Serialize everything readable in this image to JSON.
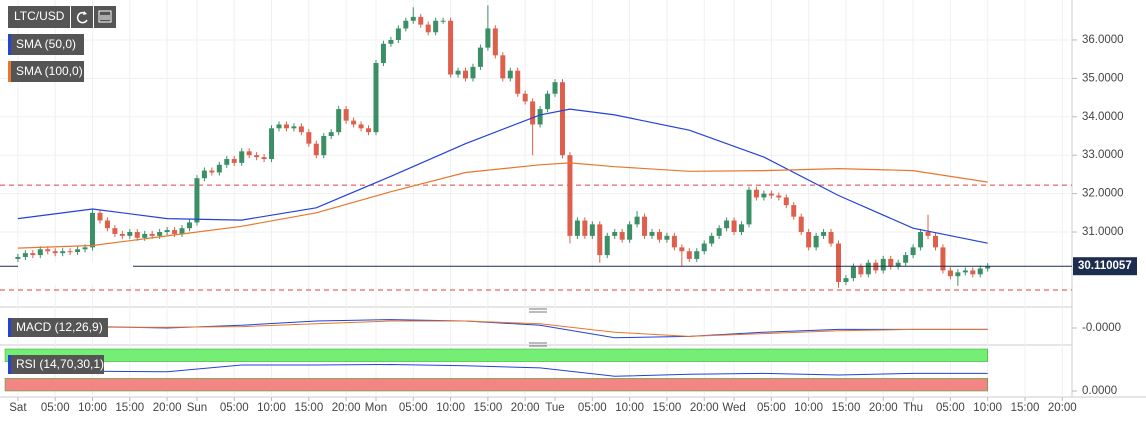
{
  "chart_data": {
    "type": "candlestick",
    "symbol": "LTC/USD",
    "x": [
      0,
      1,
      2,
      3,
      4,
      5,
      6,
      7,
      8,
      9,
      10,
      11,
      12,
      13,
      14,
      15,
      16,
      17,
      18,
      19,
      20,
      21,
      22,
      23,
      24,
      25,
      26,
      27,
      28,
      29,
      30,
      31,
      32,
      33,
      34,
      35,
      36,
      37,
      38,
      39,
      40,
      41,
      42,
      43,
      44,
      45,
      46,
      47,
      48,
      49,
      50,
      51,
      52,
      53,
      54,
      55,
      56,
      57,
      58,
      59,
      60,
      61,
      62,
      63,
      64,
      65,
      66,
      67,
      68,
      69,
      70,
      71,
      72,
      73,
      74,
      75,
      76,
      77,
      78,
      79,
      80,
      81,
      82,
      83,
      84,
      85,
      86,
      87,
      88,
      89,
      90,
      91,
      92,
      93,
      94,
      95,
      96,
      97,
      98,
      99,
      100,
      101,
      102,
      103,
      104,
      105,
      106,
      107,
      108,
      109,
      110,
      111,
      112,
      113,
      114,
      115,
      116,
      117,
      118,
      119,
      120,
      121,
      122,
      123,
      124,
      125,
      126,
      127,
      128,
      129,
      130
    ],
    "open": [
      30.3,
      30.35,
      30.45,
      30.4,
      30.55,
      30.5,
      30.45,
      30.5,
      30.48,
      30.55,
      30.6,
      31.5,
      31.3,
      31.1,
      30.95,
      30.9,
      31.0,
      30.85,
      30.95,
      30.9,
      31.0,
      31.05,
      30.95,
      31.1,
      31.25,
      32.4,
      32.6,
      32.55,
      32.75,
      32.9,
      32.8,
      33.1,
      33.0,
      32.95,
      32.9,
      33.7,
      33.8,
      33.7,
      33.75,
      33.6,
      33.3,
      33.0,
      33.5,
      33.6,
      34.2,
      33.9,
      33.8,
      33.7,
      33.6,
      35.4,
      35.9,
      36.0,
      36.3,
      36.5,
      36.6,
      36.4,
      36.2,
      36.5,
      36.5,
      35.1,
      35.2,
      35.0,
      35.3,
      35.8,
      36.3,
      35.6,
      35.0,
      35.2,
      34.6,
      34.4,
      33.8,
      34.2,
      34.6,
      34.9,
      33.0,
      30.9,
      31.3,
      30.9,
      31.2,
      30.4,
      30.9,
      31.0,
      30.8,
      31.2,
      31.4,
      30.9,
      31.0,
      30.8,
      30.9,
      30.6,
      30.5,
      30.3,
      30.5,
      30.7,
      30.9,
      31.1,
      31.3,
      31.0,
      31.2,
      32.1,
      31.9,
      32.0,
      31.95,
      31.9,
      31.7,
      31.4,
      31.0,
      30.6,
      30.9,
      31.0,
      30.7,
      29.7,
      29.8,
      30.1,
      29.9,
      30.2,
      30.0,
      30.3,
      30.1,
      30.2,
      30.4,
      30.6,
      31.0,
      30.9,
      30.6,
      30.0,
      29.85,
      29.95,
      30.0,
      29.9,
      30.05
    ],
    "high": [
      30.43,
      30.53,
      30.53,
      30.63,
      30.63,
      30.58,
      30.58,
      30.58,
      30.63,
      30.68,
      31.58,
      31.58,
      31.38,
      31.18,
      31.03,
      31.08,
      31.08,
      31.03,
      31.03,
      31.08,
      31.13,
      31.13,
      31.18,
      31.33,
      32.48,
      32.68,
      32.68,
      32.83,
      32.98,
      32.98,
      33.18,
      33.18,
      33.08,
      33.03,
      33.78,
      33.88,
      33.88,
      33.83,
      33.83,
      33.68,
      33.38,
      33.58,
      33.68,
      34.28,
      34.28,
      33.98,
      33.88,
      33.78,
      35.48,
      35.98,
      36.08,
      36.38,
      36.58,
      36.85,
      36.68,
      36.48,
      36.58,
      36.58,
      36.58,
      35.28,
      35.28,
      35.38,
      35.88,
      36.9,
      36.38,
      35.68,
      35.28,
      35.28,
      34.68,
      34.48,
      34.28,
      34.68,
      34.98,
      34.98,
      33.08,
      31.38,
      31.38,
      31.28,
      31.28,
      30.98,
      31.08,
      31.08,
      31.28,
      31.55,
      31.48,
      31.08,
      31.08,
      30.98,
      30.98,
      30.68,
      30.58,
      30.58,
      30.78,
      30.98,
      31.18,
      31.38,
      31.38,
      31.28,
      32.18,
      32.18,
      32.08,
      32.08,
      32.03,
      31.98,
      31.78,
      31.48,
      31.08,
      30.98,
      31.08,
      31.08,
      30.78,
      29.88,
      30.18,
      30.18,
      30.28,
      30.28,
      30.38,
      30.38,
      30.28,
      30.48,
      30.68,
      31.08,
      31.45,
      30.98,
      30.68,
      30.08,
      30.03,
      30.08,
      30.08,
      30.13,
      30.19
    ],
    "low": [
      30.22,
      30.27,
      30.32,
      30.32,
      30.42,
      30.37,
      30.37,
      30.4,
      30.4,
      30.47,
      30.52,
      31.22,
      31.02,
      30.87,
      30.82,
      30.82,
      30.77,
      30.77,
      30.82,
      30.82,
      30.92,
      30.87,
      30.87,
      31.02,
      31.17,
      32.32,
      32.47,
      32.47,
      32.67,
      32.72,
      32.72,
      32.92,
      32.87,
      32.82,
      32.82,
      33.62,
      33.62,
      33.62,
      33.52,
      33.22,
      32.92,
      32.92,
      33.42,
      33.52,
      33.82,
      33.72,
      33.62,
      33.52,
      33.52,
      35.32,
      35.82,
      35.92,
      36.22,
      36.42,
      36.32,
      36.12,
      36.12,
      36.42,
      35.02,
      35.02,
      34.92,
      34.92,
      35.22,
      35.72,
      35.52,
      34.92,
      34.92,
      34.52,
      34.32,
      33.0,
      33.72,
      34.12,
      34.52,
      32.92,
      30.7,
      30.82,
      30.82,
      30.82,
      30.2,
      30.32,
      30.82,
      30.72,
      30.72,
      31.12,
      30.82,
      30.82,
      30.72,
      30.72,
      30.52,
      30.1,
      30.22,
      30.22,
      30.42,
      30.62,
      30.82,
      31.02,
      30.92,
      30.92,
      31.12,
      31.82,
      31.82,
      31.87,
      31.82,
      31.62,
      31.32,
      30.92,
      30.52,
      30.52,
      30.82,
      30.62,
      29.55,
      29.62,
      29.72,
      29.82,
      29.82,
      29.92,
      29.92,
      30.02,
      30.02,
      30.12,
      30.32,
      30.52,
      30.82,
      30.52,
      29.92,
      29.77,
      29.6,
      29.87,
      29.82,
      29.82,
      29.97
    ],
    "close": [
      30.35,
      30.45,
      30.4,
      30.55,
      30.5,
      30.45,
      30.5,
      30.48,
      30.55,
      30.6,
      31.5,
      31.3,
      31.1,
      30.95,
      30.9,
      31.0,
      30.85,
      30.95,
      30.9,
      31.0,
      31.05,
      30.95,
      31.1,
      31.25,
      32.4,
      32.6,
      32.55,
      32.75,
      32.9,
      32.8,
      33.1,
      33.0,
      32.95,
      32.9,
      33.7,
      33.8,
      33.7,
      33.75,
      33.6,
      33.3,
      33.0,
      33.5,
      33.6,
      34.2,
      33.9,
      33.8,
      33.7,
      33.6,
      35.4,
      35.9,
      36.0,
      36.3,
      36.5,
      36.6,
      36.4,
      36.2,
      36.5,
      36.5,
      35.1,
      35.2,
      35.0,
      35.3,
      35.8,
      36.3,
      35.6,
      35.0,
      35.2,
      34.6,
      34.4,
      33.8,
      34.2,
      34.6,
      34.9,
      33.0,
      30.9,
      31.3,
      30.9,
      31.2,
      30.4,
      30.9,
      31.0,
      30.8,
      31.2,
      31.4,
      30.9,
      31.0,
      30.8,
      30.9,
      30.6,
      30.5,
      30.3,
      30.5,
      30.7,
      30.9,
      31.1,
      31.3,
      31.0,
      31.2,
      32.1,
      31.9,
      32.0,
      31.95,
      31.9,
      31.7,
      31.4,
      31.0,
      30.6,
      30.9,
      31.0,
      30.7,
      29.7,
      29.8,
      30.1,
      29.9,
      30.2,
      30.0,
      30.3,
      30.1,
      30.2,
      30.4,
      30.6,
      31.0,
      30.9,
      30.6,
      30.0,
      29.85,
      29.95,
      30.0,
      29.9,
      30.05,
      30.11
    ],
    "colors": {
      "up": "#3a8f66",
      "down": "#dd5f4c"
    },
    "xlim": [
      -2.4,
      141.3
    ],
    "xticks": [
      {
        "value": 0,
        "label": "Sat"
      },
      {
        "value": 5,
        "label": "05:00"
      },
      {
        "value": 10,
        "label": "10:00"
      },
      {
        "value": 15,
        "label": "15:00"
      },
      {
        "value": 20,
        "label": "20:00"
      },
      {
        "value": 24,
        "label": "Sun"
      },
      {
        "value": 29,
        "label": "05:00"
      },
      {
        "value": 34,
        "label": "10:00"
      },
      {
        "value": 39,
        "label": "15:00"
      },
      {
        "value": 44,
        "label": "20:00"
      },
      {
        "value": 48,
        "label": "Mon"
      },
      {
        "value": 53,
        "label": "05:00"
      },
      {
        "value": 58,
        "label": "10:00"
      },
      {
        "value": 63,
        "label": "15:00"
      },
      {
        "value": 68,
        "label": "20:00"
      },
      {
        "value": 72,
        "label": "Tue"
      },
      {
        "value": 77,
        "label": "05:00"
      },
      {
        "value": 82,
        "label": "10:00"
      },
      {
        "value": 87,
        "label": "15:00"
      },
      {
        "value": 92,
        "label": "20:00"
      },
      {
        "value": 96,
        "label": "Wed"
      },
      {
        "value": 101,
        "label": "05:00"
      },
      {
        "value": 106,
        "label": "10:00"
      },
      {
        "value": 111,
        "label": "15:00"
      },
      {
        "value": 116,
        "label": "20:00"
      },
      {
        "value": 120,
        "label": "Thu"
      },
      {
        "value": 125,
        "label": "05:00"
      },
      {
        "value": 130,
        "label": "10:00"
      },
      {
        "value": 135,
        "label": "15:00"
      },
      {
        "value": 140,
        "label": "20:00"
      }
    ],
    "ylim": [
      29.1,
      36.91
    ],
    "yticks": [
      {
        "value": 36,
        "label": "36.0000"
      },
      {
        "value": 35,
        "label": "35.0000"
      },
      {
        "value": 34,
        "label": "34.0000"
      },
      {
        "value": 33,
        "label": "33.0000"
      },
      {
        "value": 32,
        "label": "32.0000"
      },
      {
        "value": 31,
        "label": "31.0000"
      }
    ],
    "grid": true,
    "last_price": 30.110057,
    "last_price_color": "#1c2d4f",
    "levels": [
      32.22,
      29.49
    ],
    "level_color": "#e0403a",
    "series": [
      {
        "name": "SMA (50,0)",
        "color": "#2342d8",
        "x": [
          0,
          10,
          20,
          30,
          40,
          50,
          60,
          70,
          74,
          80,
          90,
          100,
          110,
          120,
          130
        ],
        "values": [
          31.35,
          31.6,
          31.35,
          31.31,
          31.63,
          32.45,
          33.3,
          34.05,
          34.2,
          34.05,
          33.65,
          32.95,
          31.95,
          31.1,
          30.71
        ]
      },
      {
        "name": "SMA (100,0)",
        "color": "#e8772e",
        "x": [
          0,
          10,
          20,
          30,
          40,
          50,
          60,
          70,
          74,
          80,
          90,
          100,
          110,
          120,
          130
        ],
        "values": [
          30.58,
          30.65,
          30.9,
          31.15,
          31.5,
          32.05,
          32.55,
          32.75,
          32.8,
          32.7,
          32.58,
          32.6,
          32.65,
          32.6,
          32.3
        ]
      }
    ],
    "indicators": [
      {
        "type": "macd",
        "name": "MACD (12,26,9)",
        "ylim": [
          -1,
          1
        ],
        "yticks": [
          {
            "value": 0,
            "label": "-0.0000"
          }
        ],
        "series": [
          {
            "color": "#2342d8",
            "x": [
              0,
              10,
              20,
              30,
              40,
              50,
              60,
              70,
              80,
              90,
              100,
              110,
              120,
              130
            ],
            "values": [
              0.0,
              0.1,
              0.0,
              0.2,
              0.5,
              0.6,
              0.5,
              0.2,
              -0.7,
              -0.6,
              -0.3,
              -0.1,
              -0.1,
              -0.1
            ]
          },
          {
            "color": "#e8772e",
            "x": [
              0,
              10,
              20,
              30,
              40,
              50,
              60,
              70,
              80,
              90,
              100,
              110,
              120,
              130
            ],
            "values": [
              0.0,
              0.05,
              0.05,
              0.1,
              0.3,
              0.5,
              0.5,
              0.3,
              -0.3,
              -0.6,
              -0.4,
              -0.2,
              -0.1,
              -0.1
            ]
          }
        ]
      },
      {
        "type": "rsi",
        "name": "RSI (14,70,30,1)",
        "ylim": [
          0,
          100
        ],
        "yticks": [
          {
            "value": 0,
            "label": "0.0000"
          }
        ],
        "bands": [
          {
            "range": [
              70,
              100
            ],
            "color": "#74ee74"
          },
          {
            "range": [
              0,
              30
            ],
            "color": "#f38585"
          }
        ],
        "series": [
          {
            "color": "#2342d8",
            "x": [
              0,
              10,
              20,
              30,
              40,
              50,
              60,
              70,
              80,
              90,
              100,
              110,
              120,
              130
            ],
            "values": [
              45,
              47,
              46,
              62,
              62,
              63,
              60,
              55,
              35,
              40,
              42,
              38,
              42,
              42
            ]
          }
        ]
      }
    ]
  }
}
